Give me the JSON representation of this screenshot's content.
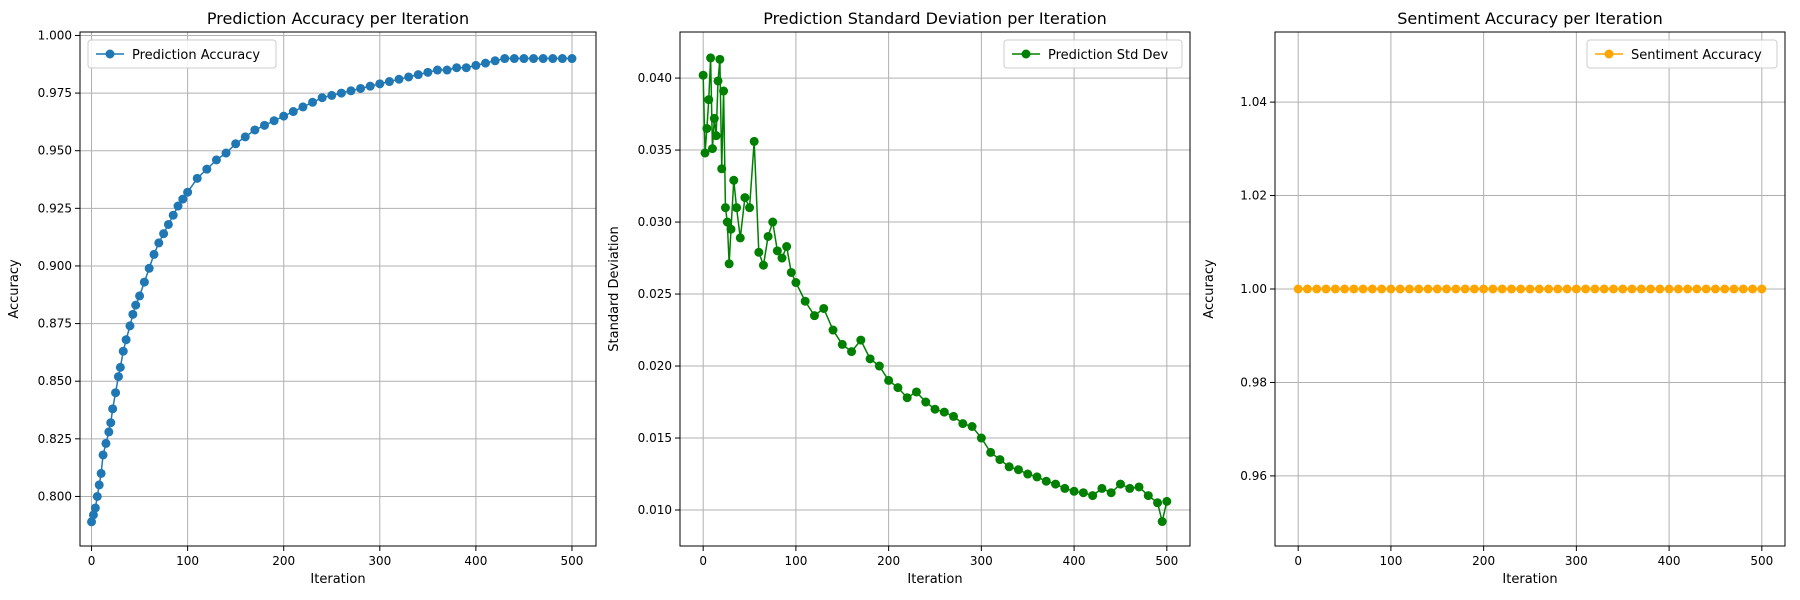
{
  "chart_data": [
    {
      "type": "line",
      "title": "Prediction Accuracy per Iteration",
      "xlabel": "Iteration",
      "ylabel": "Accuracy",
      "xlim": [
        -12,
        525
      ],
      "ylim": [
        0.7785,
        1.0015
      ],
      "xticks": [
        0,
        100,
        200,
        300,
        400,
        500
      ],
      "yticks": [
        0.8,
        0.825,
        0.85,
        0.875,
        0.9,
        0.925,
        0.95,
        0.975,
        1.0
      ],
      "ytick_decimals": 3,
      "grid": true,
      "legend_position": "top-left",
      "series": [
        {
          "name": "Prediction Accuracy",
          "color": "#1f77b4",
          "marker": "circle",
          "x": [
            0,
            2,
            4,
            6,
            8,
            10,
            12,
            15,
            18,
            20,
            22,
            25,
            28,
            30,
            33,
            36,
            40,
            43,
            46,
            50,
            55,
            60,
            65,
            70,
            75,
            80,
            85,
            90,
            95,
            100,
            110,
            120,
            130,
            140,
            150,
            160,
            170,
            180,
            190,
            200,
            210,
            220,
            230,
            240,
            250,
            260,
            270,
            280,
            290,
            300,
            310,
            320,
            330,
            340,
            350,
            360,
            370,
            380,
            390,
            400,
            410,
            420,
            430,
            440,
            450,
            460,
            470,
            480,
            490,
            500
          ],
          "y": [
            0.789,
            0.792,
            0.795,
            0.8,
            0.805,
            0.81,
            0.818,
            0.823,
            0.828,
            0.832,
            0.838,
            0.845,
            0.852,
            0.856,
            0.863,
            0.868,
            0.874,
            0.879,
            0.883,
            0.887,
            0.893,
            0.899,
            0.905,
            0.91,
            0.914,
            0.918,
            0.922,
            0.926,
            0.929,
            0.932,
            0.938,
            0.942,
            0.946,
            0.949,
            0.953,
            0.956,
            0.959,
            0.961,
            0.963,
            0.965,
            0.967,
            0.969,
            0.971,
            0.973,
            0.974,
            0.975,
            0.976,
            0.977,
            0.978,
            0.979,
            0.98,
            0.981,
            0.982,
            0.983,
            0.984,
            0.985,
            0.985,
            0.986,
            0.986,
            0.987,
            0.988,
            0.989,
            0.99,
            0.99,
            0.99,
            0.99,
            0.99,
            0.99,
            0.99,
            0.99
          ]
        }
      ]
    },
    {
      "type": "line",
      "title": "Prediction Standard Deviation per Iteration",
      "xlabel": "Iteration",
      "ylabel": "Standard Deviation",
      "xlim": [
        -25,
        525
      ],
      "ylim": [
        0.0075,
        0.0432
      ],
      "xticks": [
        0,
        100,
        200,
        300,
        400,
        500
      ],
      "yticks": [
        0.01,
        0.015,
        0.02,
        0.025,
        0.03,
        0.035,
        0.04
      ],
      "ytick_decimals": 3,
      "grid": true,
      "legend_position": "top-right",
      "series": [
        {
          "name": "Prediction Std Dev",
          "color": "#008000",
          "marker": "circle",
          "x": [
            0,
            2,
            4,
            6,
            8,
            10,
            12,
            14,
            16,
            18,
            20,
            22,
            24,
            26,
            28,
            30,
            33,
            36,
            40,
            45,
            50,
            55,
            60,
            65,
            70,
            75,
            80,
            85,
            90,
            95,
            100,
            110,
            120,
            130,
            140,
            150,
            160,
            170,
            180,
            190,
            200,
            210,
            220,
            230,
            240,
            250,
            260,
            270,
            280,
            290,
            300,
            310,
            320,
            330,
            340,
            350,
            360,
            370,
            380,
            390,
            400,
            410,
            420,
            430,
            440,
            450,
            460,
            470,
            480,
            490,
            495,
            500
          ],
          "y": [
            0.0402,
            0.0348,
            0.0365,
            0.0385,
            0.0414,
            0.0351,
            0.0372,
            0.036,
            0.0398,
            0.0413,
            0.0337,
            0.0391,
            0.031,
            0.03,
            0.0271,
            0.0295,
            0.0329,
            0.031,
            0.0289,
            0.0317,
            0.031,
            0.0356,
            0.0279,
            0.027,
            0.029,
            0.03,
            0.028,
            0.0275,
            0.0283,
            0.0265,
            0.0258,
            0.0245,
            0.0235,
            0.024,
            0.0225,
            0.0215,
            0.021,
            0.0218,
            0.0205,
            0.02,
            0.019,
            0.0185,
            0.0178,
            0.0182,
            0.0175,
            0.017,
            0.0168,
            0.0165,
            0.016,
            0.0158,
            0.015,
            0.014,
            0.0135,
            0.013,
            0.0128,
            0.0125,
            0.0123,
            0.012,
            0.0118,
            0.0115,
            0.0113,
            0.0112,
            0.011,
            0.0115,
            0.0112,
            0.0118,
            0.0115,
            0.0116,
            0.011,
            0.0105,
            0.0092,
            0.0106
          ]
        }
      ]
    },
    {
      "type": "line",
      "title": "Sentiment Accuracy per Iteration",
      "xlabel": "Iteration",
      "ylabel": "Accuracy",
      "xlim": [
        -25,
        525
      ],
      "ylim": [
        0.945,
        1.055
      ],
      "xticks": [
        0,
        100,
        200,
        300,
        400,
        500
      ],
      "yticks": [
        0.96,
        0.98,
        1.0,
        1.02,
        1.04
      ],
      "ytick_decimals": 2,
      "grid": true,
      "legend_position": "top-right",
      "series": [
        {
          "name": "Sentiment Accuracy",
          "color": "#ffa500",
          "marker": "circle",
          "x": [
            0,
            10,
            20,
            30,
            40,
            50,
            60,
            70,
            80,
            90,
            100,
            110,
            120,
            130,
            140,
            150,
            160,
            170,
            180,
            190,
            200,
            210,
            220,
            230,
            240,
            250,
            260,
            270,
            280,
            290,
            300,
            310,
            320,
            330,
            340,
            350,
            360,
            370,
            380,
            390,
            400,
            410,
            420,
            430,
            440,
            450,
            460,
            470,
            480,
            490,
            500
          ],
          "y": [
            1.0,
            1.0,
            1.0,
            1.0,
            1.0,
            1.0,
            1.0,
            1.0,
            1.0,
            1.0,
            1.0,
            1.0,
            1.0,
            1.0,
            1.0,
            1.0,
            1.0,
            1.0,
            1.0,
            1.0,
            1.0,
            1.0,
            1.0,
            1.0,
            1.0,
            1.0,
            1.0,
            1.0,
            1.0,
            1.0,
            1.0,
            1.0,
            1.0,
            1.0,
            1.0,
            1.0,
            1.0,
            1.0,
            1.0,
            1.0,
            1.0,
            1.0,
            1.0,
            1.0,
            1.0,
            1.0,
            1.0,
            1.0,
            1.0,
            1.0,
            1.0
          ]
        }
      ]
    }
  ]
}
